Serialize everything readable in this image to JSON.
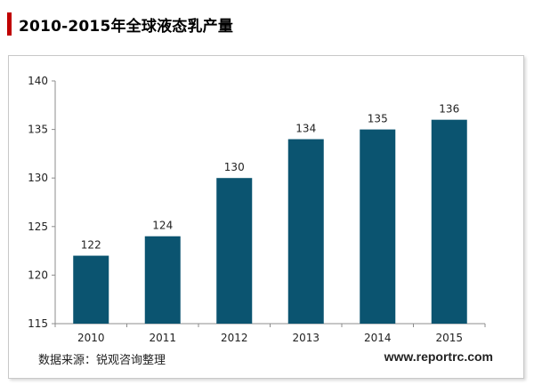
{
  "header": {
    "title": "2010-2015年全球液态乳产量",
    "accent_color": "#c00000"
  },
  "footer": {
    "source": "数据来源：锐观咨询整理",
    "website": "www.reportrc.com"
  },
  "chart_data": {
    "type": "bar",
    "categories": [
      "2010",
      "2011",
      "2012",
      "2013",
      "2014",
      "2015"
    ],
    "values": [
      122,
      124,
      130,
      134,
      135,
      136
    ],
    "data_labels": [
      "122",
      "124",
      "130",
      "134",
      "135",
      "136"
    ],
    "yticks": [
      "115",
      "120",
      "125",
      "130",
      "135",
      "140"
    ],
    "ylim": [
      115,
      140
    ],
    "ytick_step": 5,
    "grid": false,
    "legend": "none",
    "bar_color": "#0b5470",
    "title": "",
    "xlabel": "",
    "ylabel": ""
  }
}
